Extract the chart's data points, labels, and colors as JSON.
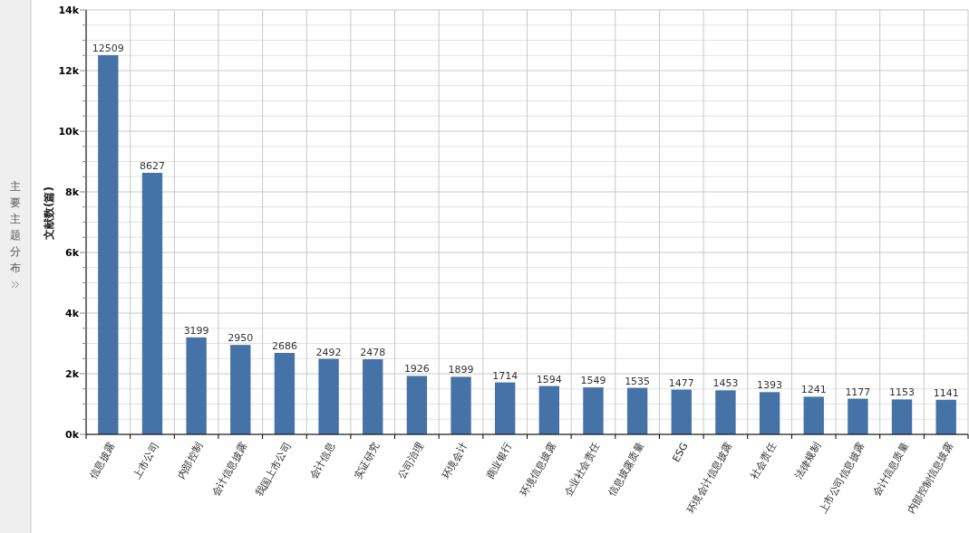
{
  "chart_data": {
    "type": "bar",
    "ylabel": "文献数(篇)",
    "annotations": [
      "主要主题分布"
    ],
    "categories": [
      "信息披露",
      "上市公司",
      "内部控制",
      "会计信息披露",
      "我国上市公司",
      "会计信息",
      "实证研究",
      "公司治理",
      "环境会计",
      "商业银行",
      "环境信息披露",
      "企业社会责任",
      "信息披露质量",
      "ESG",
      "环境会计信息披露",
      "社会责任",
      "法律规制",
      "上市公司信息披露",
      "会计信息质量",
      "内部控制信息披露"
    ],
    "values": [
      12509,
      8627,
      3199,
      2950,
      2686,
      2492,
      2478,
      1926,
      1899,
      1714,
      1594,
      1549,
      1535,
      1477,
      1453,
      1393,
      1241,
      1177,
      1153,
      1141
    ],
    "color": "#4572a7",
    "data_labels": true,
    "grid": true,
    "ylim": [
      0,
      14000
    ],
    "yticks": [
      {
        "value": 0,
        "label": "0k"
      },
      {
        "value": 500,
        "label": null
      },
      {
        "value": 1000,
        "label": null
      },
      {
        "value": 1500,
        "label": null
      },
      {
        "value": 2000,
        "label": "2k"
      },
      {
        "value": 2500,
        "label": null
      },
      {
        "value": 3000,
        "label": null
      },
      {
        "value": 3500,
        "label": null
      },
      {
        "value": 4000,
        "label": "4k"
      },
      {
        "value": 4500,
        "label": null
      },
      {
        "value": 5000,
        "label": null
      },
      {
        "value": 5500,
        "label": null
      },
      {
        "value": 6000,
        "label": "6k"
      },
      {
        "value": 6500,
        "label": null
      },
      {
        "value": 7000,
        "label": null
      },
      {
        "value": 7500,
        "label": null
      },
      {
        "value": 8000,
        "label": "8k"
      },
      {
        "value": 8500,
        "label": null
      },
      {
        "value": 9000,
        "label": null
      },
      {
        "value": 9500,
        "label": null
      },
      {
        "value": 10000,
        "label": "10k"
      },
      {
        "value": 10500,
        "label": null
      },
      {
        "value": 11000,
        "label": null
      },
      {
        "value": 11500,
        "label": null
      },
      {
        "value": 12000,
        "label": "12k"
      },
      {
        "value": 12500,
        "label": null
      },
      {
        "value": 13000,
        "label": null
      },
      {
        "value": 13500,
        "label": null
      },
      {
        "value": 14000,
        "label": "14k"
      }
    ]
  }
}
